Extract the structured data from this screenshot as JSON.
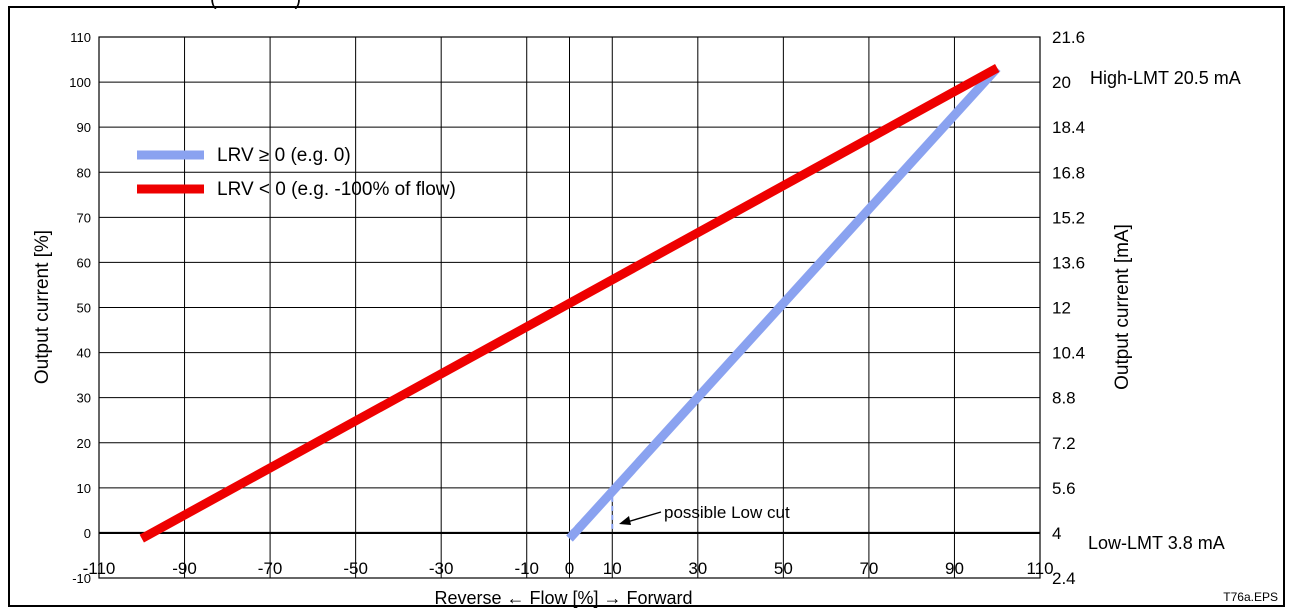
{
  "header": {
    "cut_title": "                                    (              )"
  },
  "chart_data": {
    "type": "line",
    "xlabel": "Reverse ← Flow [%] → Forward",
    "ylabel_left": "Output current [%]",
    "ylabel_right": "Output current [mA]",
    "xlim": [
      -110,
      110
    ],
    "ylim": [
      -10,
      110
    ],
    "x_ticks": [
      -110,
      -90,
      -70,
      -50,
      -30,
      -10,
      0,
      10,
      30,
      50,
      70,
      90,
      110
    ],
    "x_tick_labels": [
      "-110",
      "-90",
      "-70",
      "-50",
      "-30",
      "-10",
      "0",
      "10",
      "30",
      "50",
      "70",
      "90",
      "110"
    ],
    "y_ticks": [
      -10,
      0,
      10,
      20,
      30,
      40,
      50,
      60,
      70,
      80,
      90,
      100,
      110
    ],
    "y_tick_labels": [
      "-10",
      "0",
      "10",
      "20",
      "30",
      "40",
      "50",
      "60",
      "70",
      "80",
      "90",
      "100",
      "110"
    ],
    "y2_tick_labels": [
      "2.4",
      "4",
      "5.6",
      "7.2",
      "8.8",
      "10.4",
      "12",
      "13.6",
      "15.2",
      "16.8",
      "18.4",
      "20",
      "21.6"
    ],
    "grid": true,
    "legend_position": "top-left",
    "series": [
      {
        "name": "LRV ≥  0 (e.g. 0)",
        "color": "#8aa2f0",
        "x": [
          0,
          100
        ],
        "y": [
          -1.25,
          103.125
        ]
      },
      {
        "name": "LRV <  0 (e.g. -100% of flow)",
        "color": "#ee0000",
        "x": [
          -100,
          100
        ],
        "y": [
          -1.25,
          103.125
        ]
      }
    ],
    "low_cut": {
      "x": [
        0,
        10
      ],
      "y": [
        0,
        10
      ]
    },
    "annotations": {
      "high_limit": "High-LMT 20.5 mA",
      "low_limit": "Low-LMT 3.8 mA",
      "low_cut": "possible Low cut",
      "figure_code": "T76a.EPS"
    }
  }
}
